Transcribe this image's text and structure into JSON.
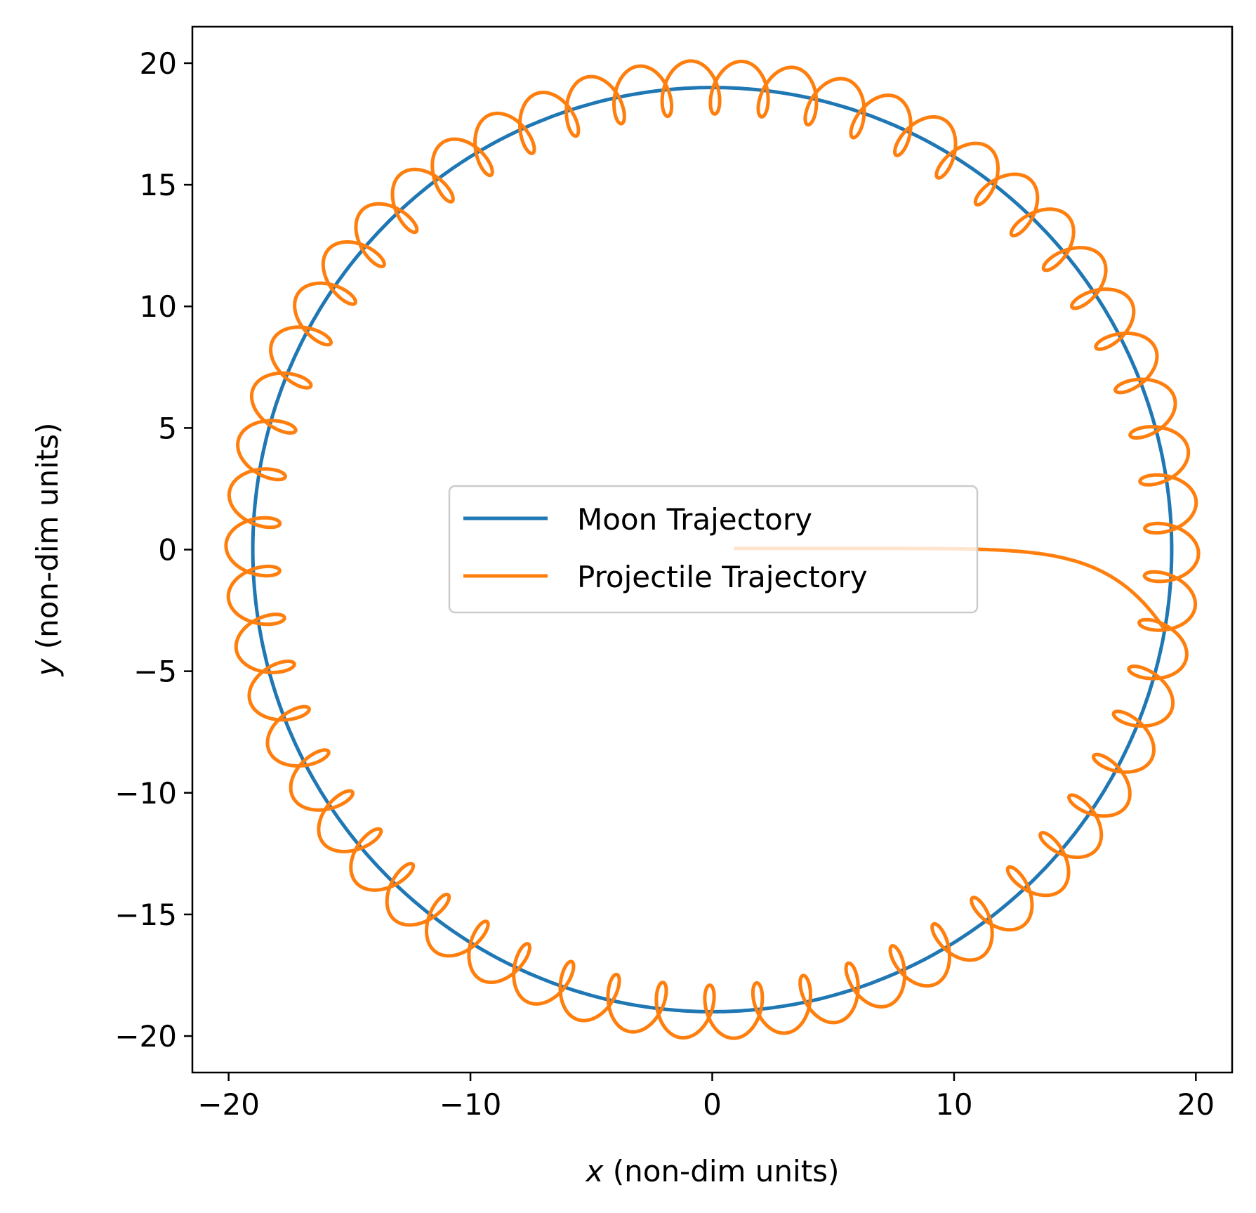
{
  "chart_data": {
    "type": "line",
    "title": "",
    "xlabel_var": "x",
    "xlabel_rest": " (non-dim units)",
    "ylabel_var": "y",
    "ylabel_rest": " (non-dim units)",
    "xlim": [
      -21.5,
      21.5
    ],
    "ylim": [
      -21.5,
      21.5
    ],
    "xticks": [
      -20,
      -10,
      0,
      10,
      20
    ],
    "yticks": [
      -20,
      -15,
      -10,
      -5,
      0,
      5,
      10,
      15,
      20
    ],
    "xtick_labels": [
      "−20",
      "−10",
      "0",
      "10",
      "20"
    ],
    "ytick_labels": [
      "−20",
      "−15",
      "−10",
      "−5",
      "0",
      "5",
      "10",
      "15",
      "20"
    ],
    "grid": false,
    "legend_position": "center",
    "series": [
      {
        "name": "Moon Trajectory",
        "color": "#1f77b4",
        "kind": "circle",
        "center": [
          0,
          0
        ],
        "radius": 19.0
      },
      {
        "name": "Projectile Trajectory",
        "color": "#ff7f0e",
        "kind": "epicycle",
        "start": [
          0.9,
          0.05
        ],
        "orbit_radius": 19.0,
        "loop_radius": 1.1,
        "loops_per_orbit": 58,
        "start_angle_deg": -10,
        "sweep_deg": 370
      }
    ]
  }
}
